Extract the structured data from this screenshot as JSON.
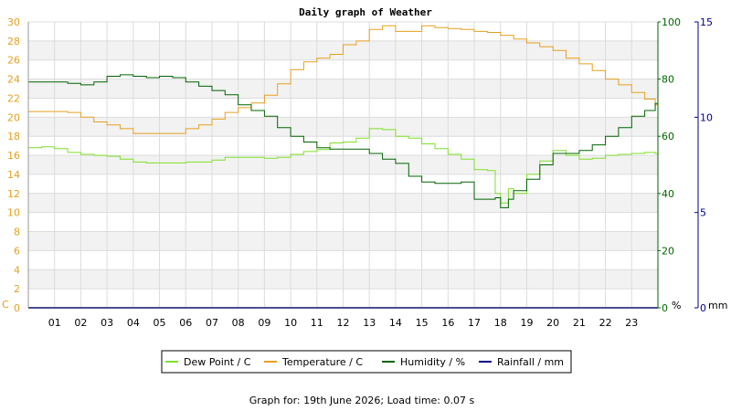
{
  "chart_data": {
    "type": "line",
    "title": "Daily graph of Weather",
    "x_ticks": [
      "01",
      "02",
      "03",
      "04",
      "05",
      "06",
      "07",
      "08",
      "09",
      "10",
      "11",
      "12",
      "13",
      "14",
      "15",
      "16",
      "17",
      "18",
      "19",
      "20",
      "21",
      "22",
      "23"
    ],
    "x_range": [
      0,
      24
    ],
    "axes": {
      "temperature": {
        "unit": "C",
        "range": [
          0,
          30
        ],
        "ticks": [
          0,
          2,
          4,
          6,
          8,
          10,
          12,
          14,
          16,
          18,
          20,
          22,
          24,
          26,
          28,
          30
        ],
        "color": "#e6a01e"
      },
      "humidity": {
        "unit": "%",
        "range": [
          0,
          100
        ],
        "ticks": [
          0,
          20,
          40,
          60,
          80,
          100
        ],
        "color": "#006400"
      },
      "rainfall": {
        "unit": "mm",
        "range": [
          0,
          15
        ],
        "ticks": [
          0,
          5,
          10,
          15
        ],
        "color": "#00008b"
      }
    },
    "grid": true,
    "legend_placement": "bottom",
    "series": [
      {
        "name": "Dew Point / C",
        "axis": "temperature",
        "color": "#7fe02a",
        "x": [
          0,
          0.5,
          1,
          1.5,
          2,
          2.5,
          3,
          3.5,
          4,
          4.5,
          5,
          5.5,
          6,
          6.5,
          7,
          7.5,
          8,
          8.5,
          9,
          9.5,
          10,
          10.5,
          11,
          11.5,
          12,
          12.5,
          13,
          13.5,
          14,
          14.5,
          15,
          15.5,
          16,
          16.5,
          17,
          17.5,
          17.8,
          18,
          18.3,
          18.5,
          19,
          19.5,
          20,
          20.5,
          21,
          21.5,
          22,
          22.5,
          23,
          23.5,
          23.9
        ],
        "y": [
          16.8,
          16.9,
          16.7,
          16.3,
          16.1,
          16,
          15.9,
          15.6,
          15.3,
          15.2,
          15.2,
          15.2,
          15.3,
          15.3,
          15.5,
          15.8,
          15.8,
          15.8,
          15.7,
          15.8,
          16.1,
          16.4,
          16.6,
          17.3,
          17.4,
          17.8,
          18.8,
          18.7,
          18,
          17.8,
          17.2,
          16.7,
          16.1,
          15.6,
          14.5,
          14.4,
          12,
          11,
          12.5,
          12,
          14,
          15.4,
          16.5,
          16,
          15.6,
          15.7,
          16,
          16.1,
          16.2,
          16.3,
          16.2
        ]
      },
      {
        "name": "Temperature / C",
        "axis": "temperature",
        "color": "#e6a01e",
        "x": [
          0,
          0.5,
          1,
          1.5,
          2,
          2.5,
          3,
          3.5,
          4,
          4.5,
          5,
          5.5,
          6,
          6.5,
          7,
          7.5,
          8,
          8.5,
          9,
          9.5,
          10,
          10.5,
          11,
          11.5,
          12,
          12.5,
          13,
          13.5,
          14,
          14.5,
          15,
          15.5,
          16,
          16.5,
          17,
          17.5,
          18,
          18.5,
          19,
          19.5,
          20,
          20.5,
          21,
          21.5,
          22,
          22.5,
          23,
          23.5,
          23.9
        ],
        "y": [
          20.6,
          20.6,
          20.6,
          20.5,
          20,
          19.5,
          19.2,
          18.8,
          18.3,
          18.3,
          18.3,
          18.3,
          18.8,
          19.2,
          19.8,
          20.5,
          21,
          21.5,
          22.3,
          23.5,
          25,
          25.8,
          26.2,
          26.6,
          27.6,
          28,
          29.2,
          29.6,
          29,
          29,
          29.6,
          29.4,
          29.3,
          29.2,
          29,
          28.9,
          28.6,
          28.2,
          27.8,
          27.4,
          27,
          26.2,
          25.6,
          24.9,
          24,
          23.4,
          22.6,
          21.9,
          21.3
        ]
      },
      {
        "name": "Humidity / %",
        "axis": "humidity",
        "color": "#006400",
        "x": [
          0,
          0.5,
          1,
          1.5,
          2,
          2.5,
          3,
          3.5,
          4,
          4.5,
          5,
          5.5,
          6,
          6.5,
          7,
          7.5,
          8,
          8.5,
          9,
          9.5,
          10,
          10.5,
          11,
          11.5,
          12,
          12.5,
          13,
          13.5,
          14,
          14.5,
          15,
          15.5,
          16,
          16.5,
          17,
          17.5,
          17.8,
          18,
          18.3,
          18.5,
          19,
          19.5,
          20,
          20.5,
          21,
          21.5,
          22,
          22.5,
          23,
          23.5,
          23.9
        ],
        "y": [
          79,
          79,
          79,
          78.5,
          78,
          79,
          81,
          81.5,
          81,
          80.5,
          81,
          80.5,
          79,
          77.5,
          76,
          74.5,
          71,
          69,
          67,
          63,
          60,
          58,
          56,
          55.5,
          55.5,
          55.5,
          54,
          52,
          50.5,
          46,
          44,
          43.5,
          43.5,
          44,
          38,
          38,
          38.5,
          35,
          38,
          41,
          45,
          50,
          54,
          54,
          55,
          57,
          60,
          63,
          67,
          69,
          71.5
        ]
      },
      {
        "name": "Rainfall / mm",
        "axis": "rainfall",
        "color": "#00008b",
        "x": [
          0,
          23.9
        ],
        "y": [
          0,
          0
        ]
      }
    ],
    "footer": "Graph for: 19th June 2026; Load time: 0.07 s"
  }
}
